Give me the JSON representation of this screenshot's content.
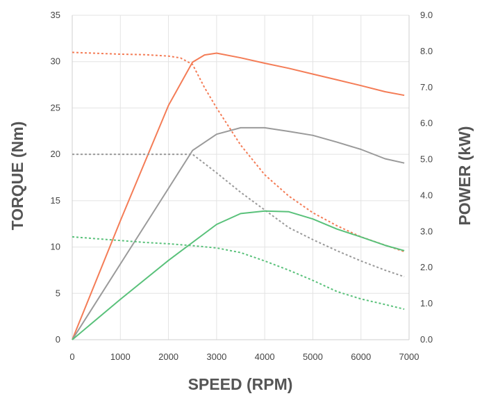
{
  "chart_data": {
    "type": "line",
    "title": "",
    "xlabel": "SPEED (RPM)",
    "ylabel_left": "TORQUE (Nm)",
    "ylabel_right": "POWER (kW)",
    "xlim": [
      0,
      7000
    ],
    "ylim_left": [
      0,
      35
    ],
    "ylim_right": [
      0,
      9.0
    ],
    "x_ticks": [
      0,
      1000,
      2000,
      3000,
      4000,
      5000,
      6000,
      7000
    ],
    "x_tick_labels": [
      "0",
      "1000",
      "2000",
      "3000",
      "4000",
      "5000",
      "6000",
      "7000"
    ],
    "y_left_ticks": [
      0,
      5,
      10,
      15,
      20,
      25,
      30,
      35
    ],
    "y_left_tick_labels": [
      "0",
      "5",
      "10",
      "15",
      "20",
      "25",
      "30",
      "35"
    ],
    "y_right_ticks": [
      0,
      1,
      2,
      3,
      4,
      5,
      6,
      7,
      8,
      9
    ],
    "y_right_tick_labels": [
      "0.0",
      "1.0",
      "2.0",
      "3.0",
      "4.0",
      "5.0",
      "6.0",
      "7.0",
      "8.0",
      "9.0"
    ],
    "grid": true,
    "legend": "none",
    "series": [
      {
        "axis": "right",
        "style": "solid",
        "color": "#f47c56",
        "x": [
          0,
          1000,
          2000,
          2500,
          2750,
          3000,
          3500,
          4000,
          4500,
          5000,
          5500,
          6000,
          6500,
          6900
        ],
        "y": [
          0,
          3.3,
          6.5,
          7.7,
          7.9,
          7.95,
          7.82,
          7.67,
          7.53,
          7.37,
          7.21,
          7.05,
          6.88,
          6.78
        ]
      },
      {
        "axis": "left",
        "style": "dotted",
        "color": "#f47c56",
        "x": [
          0,
          500,
          1000,
          1500,
          2000,
          2250,
          2500,
          2750,
          3000,
          3500,
          4000,
          4500,
          5000,
          5500,
          6000,
          6500,
          6900
        ],
        "y": [
          31,
          30.9,
          30.8,
          30.75,
          30.6,
          30.4,
          29.7,
          27.2,
          25,
          21,
          17.8,
          15.5,
          13.7,
          12.3,
          11.1,
          10.2,
          9.5
        ]
      },
      {
        "axis": "right",
        "style": "solid",
        "color": "#9a9a9a",
        "x": [
          0,
          1000,
          2000,
          2500,
          3000,
          3500,
          4000,
          4500,
          5000,
          5500,
          6000,
          6500,
          6900
        ],
        "y": [
          0,
          2.1,
          4.2,
          5.25,
          5.7,
          5.88,
          5.88,
          5.78,
          5.67,
          5.48,
          5.28,
          5.02,
          4.9
        ]
      },
      {
        "axis": "left",
        "style": "dotted",
        "color": "#9a9a9a",
        "x": [
          0,
          500,
          1000,
          1500,
          2000,
          2500,
          3000,
          3500,
          4000,
          4500,
          5000,
          5500,
          6000,
          6500,
          6900
        ],
        "y": [
          20,
          20,
          20,
          20,
          20,
          20,
          18,
          15.9,
          14,
          12.1,
          10.8,
          9.6,
          8.5,
          7.5,
          6.8
        ]
      },
      {
        "axis": "right",
        "style": "solid",
        "color": "#59c17a",
        "x": [
          0,
          1000,
          2000,
          3000,
          3500,
          4000,
          4500,
          5000,
          5500,
          6000,
          6500,
          6900
        ],
        "y": [
          0,
          1.12,
          2.2,
          3.2,
          3.5,
          3.57,
          3.55,
          3.35,
          3.07,
          2.85,
          2.62,
          2.47
        ]
      },
      {
        "axis": "left",
        "style": "dotted",
        "color": "#59c17a",
        "x": [
          0,
          500,
          1000,
          1500,
          2000,
          2500,
          3000,
          3500,
          4000,
          4500,
          5000,
          5500,
          6000,
          6500,
          6900
        ],
        "y": [
          11.1,
          10.9,
          10.7,
          10.5,
          10.35,
          10.15,
          9.9,
          9.4,
          8.5,
          7.5,
          6.4,
          5.2,
          4.4,
          3.8,
          3.3
        ]
      }
    ]
  }
}
